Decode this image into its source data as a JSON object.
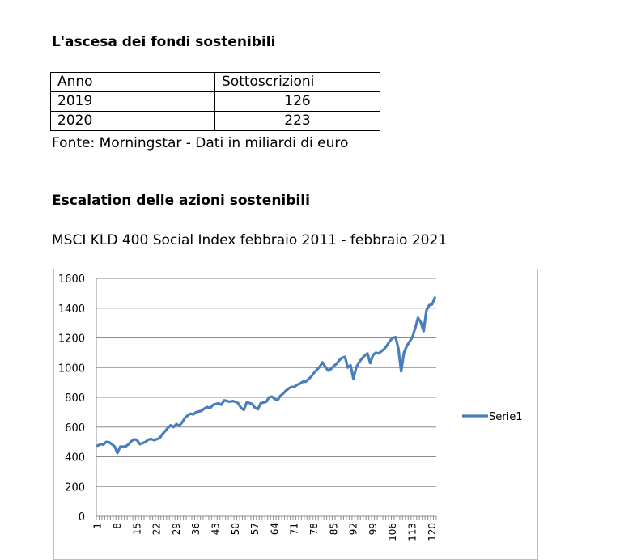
{
  "section1": {
    "title": "L'ascesa dei fondi sostenibili",
    "table": {
      "headers": [
        "Anno",
        "Sottoscrizioni"
      ],
      "rows": [
        [
          "2019",
          "126"
        ],
        [
          "2020",
          "223"
        ]
      ]
    },
    "source": "Fonte: Morningstar - Dati in miliardi di euro"
  },
  "section2": {
    "title": "Escalation delle azioni sostenibili",
    "subtitle": "MSCI KLD 400 Social Index febbraio 2011 - febbraio 2021"
  },
  "chart_data": {
    "type": "line",
    "x_tick_labels": [
      "1",
      "8",
      "15",
      "22",
      "29",
      "36",
      "43",
      "50",
      "57",
      "64",
      "71",
      "78",
      "85",
      "92",
      "99",
      "106",
      "113",
      "120"
    ],
    "ylim": [
      0,
      1600
    ],
    "y_ticks": [
      0,
      200,
      400,
      600,
      800,
      1000,
      1200,
      1400,
      1600
    ],
    "grid": true,
    "legend_position": "right",
    "line_color": "#4a7ebb",
    "series": [
      {
        "name": "Serie1",
        "values": [
          475,
          485,
          482,
          500,
          498,
          485,
          470,
          425,
          468,
          468,
          470,
          485,
          505,
          518,
          512,
          485,
          492,
          500,
          515,
          520,
          512,
          518,
          525,
          552,
          572,
          595,
          612,
          600,
          620,
          608,
          630,
          660,
          678,
          690,
          685,
          700,
          705,
          710,
          725,
          735,
          728,
          748,
          755,
          760,
          750,
          780,
          775,
          770,
          775,
          770,
          760,
          730,
          715,
          765,
          762,
          755,
          730,
          720,
          760,
          765,
          770,
          800,
          805,
          790,
          780,
          810,
          825,
          845,
          860,
          870,
          870,
          885,
          892,
          905,
          905,
          922,
          940,
          965,
          985,
          1005,
          1035,
          1005,
          980,
          990,
          1010,
          1025,
          1050,
          1065,
          1072,
          1000,
          1015,
          925,
          1000,
          1035,
          1060,
          1080,
          1095,
          1030,
          1085,
          1100,
          1095,
          1110,
          1125,
          1150,
          1180,
          1200,
          1205,
          1130,
          975,
          1100,
          1145,
          1175,
          1205,
          1265,
          1335,
          1305,
          1245,
          1385,
          1420,
          1425,
          1470
        ]
      }
    ]
  }
}
